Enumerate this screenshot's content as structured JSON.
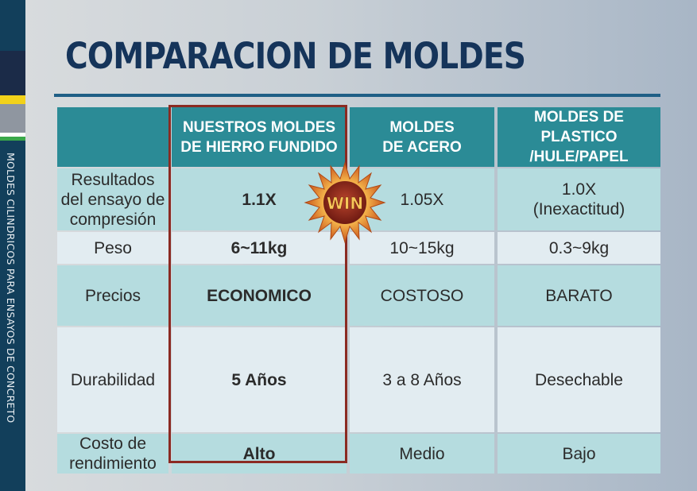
{
  "sidebar": {
    "vertical_text": "MOLDES CILINDRICOS PARA ENSAYOS DE CONCRETO"
  },
  "title": "COMPARACION DE MOLDES",
  "badge": {
    "text": "WIN"
  },
  "table": {
    "headers": [
      "",
      "NUESTROS MOLDES\nDE HIERRO FUNDIDO",
      "MOLDES\nDE ACERO",
      "MOLDES DE PLASTICO\n/HULE/PAPEL"
    ],
    "rows": [
      {
        "label": "Resultados\ndel ensayo de\ncompresión",
        "ours": "1.1X",
        "steel": "1.05X",
        "plastic": "1.0X\n(Inexactitud)"
      },
      {
        "label": "Peso",
        "ours": "6~11kg",
        "steel": "10~15kg",
        "plastic": "0.3~9kg"
      },
      {
        "label": "Precios",
        "ours": "ECONOMICO",
        "steel": "COSTOSO",
        "plastic": "BARATO"
      },
      {
        "label": "Durabilidad",
        "ours": "5 Años",
        "steel": "3 a 8 Años",
        "plastic": "Desechable"
      },
      {
        "label": "Costo de\nrendimiento",
        "ours": "Alto",
        "steel": "Medio",
        "plastic": "Bajo"
      }
    ]
  },
  "colors": {
    "sidebar": "#123f5b",
    "title": "#15345a",
    "header_fill": "#2b8b96",
    "row_teal": "#b5dcdf",
    "row_light": "#e2ecf1",
    "highlight_border": "#8b2a22"
  }
}
